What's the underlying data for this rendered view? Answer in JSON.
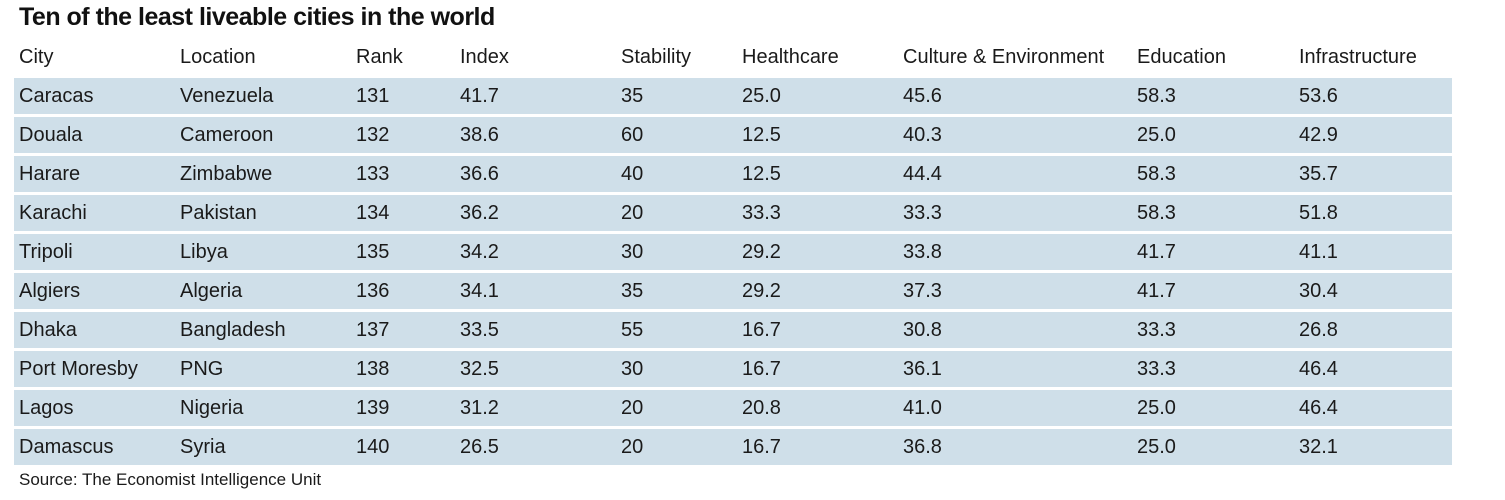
{
  "chart_data": {
    "type": "table",
    "title": "Ten of the least liveable cities in the world",
    "columns": [
      "City",
      "Location",
      "Rank",
      "Index",
      "Stability",
      "Healthcare",
      "Culture & Environment",
      "Education",
      "Infrastructure"
    ],
    "rows": [
      [
        "Caracas",
        "Venezuela",
        "131",
        "41.7",
        "35",
        "25.0",
        "45.6",
        "58.3",
        "53.6"
      ],
      [
        "Douala",
        "Cameroon",
        "132",
        "38.6",
        "60",
        "12.5",
        "40.3",
        "25.0",
        "42.9"
      ],
      [
        "Harare",
        "Zimbabwe",
        "133",
        "36.6",
        "40",
        "12.5",
        "44.4",
        "58.3",
        "35.7"
      ],
      [
        "Karachi",
        "Pakistan",
        "134",
        "36.2",
        "20",
        "33.3",
        "33.3",
        "58.3",
        "51.8"
      ],
      [
        "Tripoli",
        "Libya",
        "135",
        "34.2",
        "30",
        "29.2",
        "33.8",
        "41.7",
        "41.1"
      ],
      [
        "Algiers",
        "Algeria",
        "136",
        "34.1",
        "35",
        "29.2",
        "37.3",
        "41.7",
        "30.4"
      ],
      [
        "Dhaka",
        "Bangladesh",
        "137",
        "33.5",
        "55",
        "16.7",
        "30.8",
        "33.3",
        "26.8"
      ],
      [
        "Port Moresby",
        "PNG",
        "138",
        "32.5",
        "30",
        "16.7",
        "36.1",
        "33.3",
        "46.4"
      ],
      [
        "Lagos",
        "Nigeria",
        "139",
        "31.2",
        "20",
        "20.8",
        "41.0",
        "25.0",
        "46.4"
      ],
      [
        "Damascus",
        "Syria",
        "140",
        "26.5",
        "20",
        "16.7",
        "36.8",
        "25.0",
        "32.1"
      ]
    ],
    "source": "Source: The Economist Intelligence Unit",
    "row_color": "#cfdfe9"
  }
}
